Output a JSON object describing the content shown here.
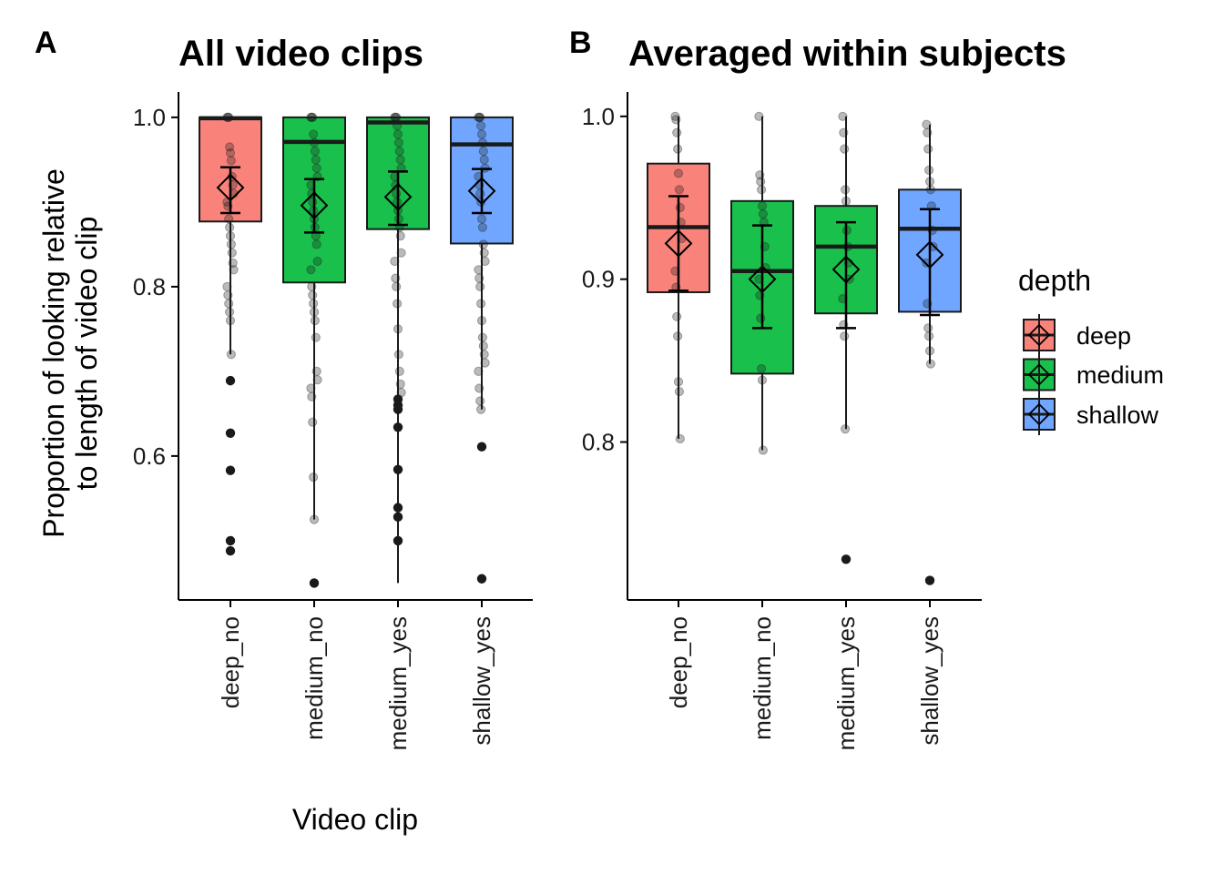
{
  "figure": {
    "colors": {
      "deep": "#F8766D",
      "medium": "#00BA38",
      "shallow": "#619CFF",
      "ink": "#1a1a1a"
    },
    "legend": {
      "title": "depth",
      "entries": [
        {
          "key": "deep",
          "label": "deep"
        },
        {
          "key": "medium",
          "label": "medium"
        },
        {
          "key": "shallow",
          "label": "shallow"
        }
      ]
    }
  },
  "chart_data": [
    {
      "tag": "A",
      "type": "box",
      "title": "All video clips",
      "xlabel": "Video clip",
      "ylabel_lines": [
        "Proportion of looking relative",
        "to length of video clip"
      ],
      "ylim": [
        0.43,
        1.03
      ],
      "yticks": [
        0.6,
        0.8,
        1.0
      ],
      "ytick_labels": [
        "0.6",
        "0.8",
        "1.0"
      ],
      "categories": [
        "deep_no",
        "medium_no",
        "medium_yes",
        "shallow_yes"
      ],
      "groups": [
        "deep",
        "medium",
        "medium",
        "shallow"
      ],
      "boxes": [
        {
          "q1": 0.877,
          "median": 0.999,
          "q3": 1.0,
          "whisker_low": 0.72,
          "whisker_high": 1.0,
          "mean": 0.917,
          "ci_low": 0.887,
          "ci_high": 0.941
        },
        {
          "q1": 0.805,
          "median": 0.971,
          "q3": 1.0,
          "whisker_low": 0.525,
          "whisker_high": 1.0,
          "mean": 0.896,
          "ci_low": 0.864,
          "ci_high": 0.927
        },
        {
          "q1": 0.868,
          "median": 0.994,
          "q3": 1.0,
          "whisker_low": 0.45,
          "whisker_high": 1.0,
          "mean": 0.906,
          "ci_low": 0.873,
          "ci_high": 0.936
        },
        {
          "q1": 0.851,
          "median": 0.968,
          "q3": 1.0,
          "whisker_low": 0.655,
          "whisker_high": 1.0,
          "mean": 0.913,
          "ci_low": 0.887,
          "ci_high": 0.939
        }
      ],
      "outliers": [
        [
          0.689,
          0.627,
          0.583,
          0.5,
          0.488
        ],
        [
          0.45
        ],
        [
          0.667,
          0.66,
          0.655,
          0.634,
          0.584,
          0.539,
          0.528,
          0.5
        ],
        [
          0.611,
          0.455
        ]
      ],
      "points": [
        [
          1.0,
          1.0,
          1.0,
          0.965,
          0.958,
          0.949,
          0.93,
          0.92,
          0.91,
          0.9,
          0.895,
          0.88,
          0.87,
          0.86,
          0.85,
          0.84,
          0.828,
          0.82,
          0.8,
          0.79,
          0.78,
          0.77,
          0.76,
          0.72
        ],
        [
          1.0,
          1.0,
          1.0,
          0.98,
          0.97,
          0.96,
          0.95,
          0.94,
          0.93,
          0.92,
          0.91,
          0.9,
          0.89,
          0.88,
          0.87,
          0.86,
          0.85,
          0.83,
          0.82,
          0.8,
          0.79,
          0.78,
          0.77,
          0.76,
          0.74,
          0.7,
          0.69,
          0.68,
          0.67,
          0.64,
          0.575,
          0.525
        ],
        [
          1.0,
          1.0,
          1.0,
          0.99,
          0.98,
          0.97,
          0.96,
          0.95,
          0.94,
          0.93,
          0.92,
          0.91,
          0.9,
          0.89,
          0.88,
          0.87,
          0.86,
          0.84,
          0.83,
          0.81,
          0.8,
          0.78,
          0.75,
          0.72,
          0.7,
          0.685,
          0.675
        ],
        [
          1.0,
          1.0,
          1.0,
          0.99,
          0.98,
          0.97,
          0.96,
          0.95,
          0.94,
          0.93,
          0.92,
          0.91,
          0.9,
          0.88,
          0.87,
          0.85,
          0.84,
          0.83,
          0.82,
          0.81,
          0.8,
          0.78,
          0.76,
          0.74,
          0.73,
          0.72,
          0.71,
          0.7,
          0.68,
          0.665,
          0.655
        ]
      ]
    },
    {
      "tag": "B",
      "type": "box",
      "title": "Averaged within subjects",
      "xlabel": "",
      "ylabel_lines": [],
      "ylim": [
        0.703,
        1.015
      ],
      "yticks": [
        0.8,
        0.9,
        1.0
      ],
      "ytick_labels": [
        "0.8",
        "0.9",
        "1.0"
      ],
      "categories": [
        "deep_no",
        "medium_no",
        "medium_yes",
        "shallow_yes"
      ],
      "groups": [
        "deep",
        "medium",
        "medium",
        "shallow"
      ],
      "boxes": [
        {
          "q1": 0.892,
          "median": 0.932,
          "q3": 0.971,
          "whisker_low": 0.802,
          "whisker_high": 1.0,
          "mean": 0.922,
          "ci_low": 0.893,
          "ci_high": 0.951
        },
        {
          "q1": 0.842,
          "median": 0.905,
          "q3": 0.948,
          "whisker_low": 0.795,
          "whisker_high": 1.0,
          "mean": 0.9,
          "ci_low": 0.87,
          "ci_high": 0.933
        },
        {
          "q1": 0.879,
          "median": 0.92,
          "q3": 0.945,
          "whisker_low": 0.808,
          "whisker_high": 1.0,
          "mean": 0.906,
          "ci_low": 0.87,
          "ci_high": 0.935
        },
        {
          "q1": 0.88,
          "median": 0.931,
          "q3": 0.955,
          "whisker_low": 0.848,
          "whisker_high": 0.995,
          "mean": 0.915,
          "ci_low": 0.878,
          "ci_high": 0.943
        }
      ],
      "outliers": [
        [],
        [],
        [
          0.728
        ],
        [
          0.715
        ]
      ],
      "points": [
        [
          1.0,
          0.998,
          0.99,
          0.98,
          0.965,
          0.955,
          0.944,
          0.935,
          0.925,
          0.905,
          0.895,
          0.877,
          0.865,
          0.837,
          0.831,
          0.802
        ],
        [
          1.0,
          0.964,
          0.96,
          0.955,
          0.945,
          0.94,
          0.935,
          0.92,
          0.907,
          0.9,
          0.89,
          0.876,
          0.845,
          0.838,
          0.795
        ],
        [
          1.0,
          0.99,
          0.98,
          0.955,
          0.948,
          0.93,
          0.92,
          0.91,
          0.9,
          0.888,
          0.872,
          0.865,
          0.808
        ],
        [
          0.995,
          0.99,
          0.98,
          0.967,
          0.96,
          0.955,
          0.945,
          0.93,
          0.92,
          0.91,
          0.885,
          0.87,
          0.865,
          0.856,
          0.848
        ]
      ]
    }
  ]
}
